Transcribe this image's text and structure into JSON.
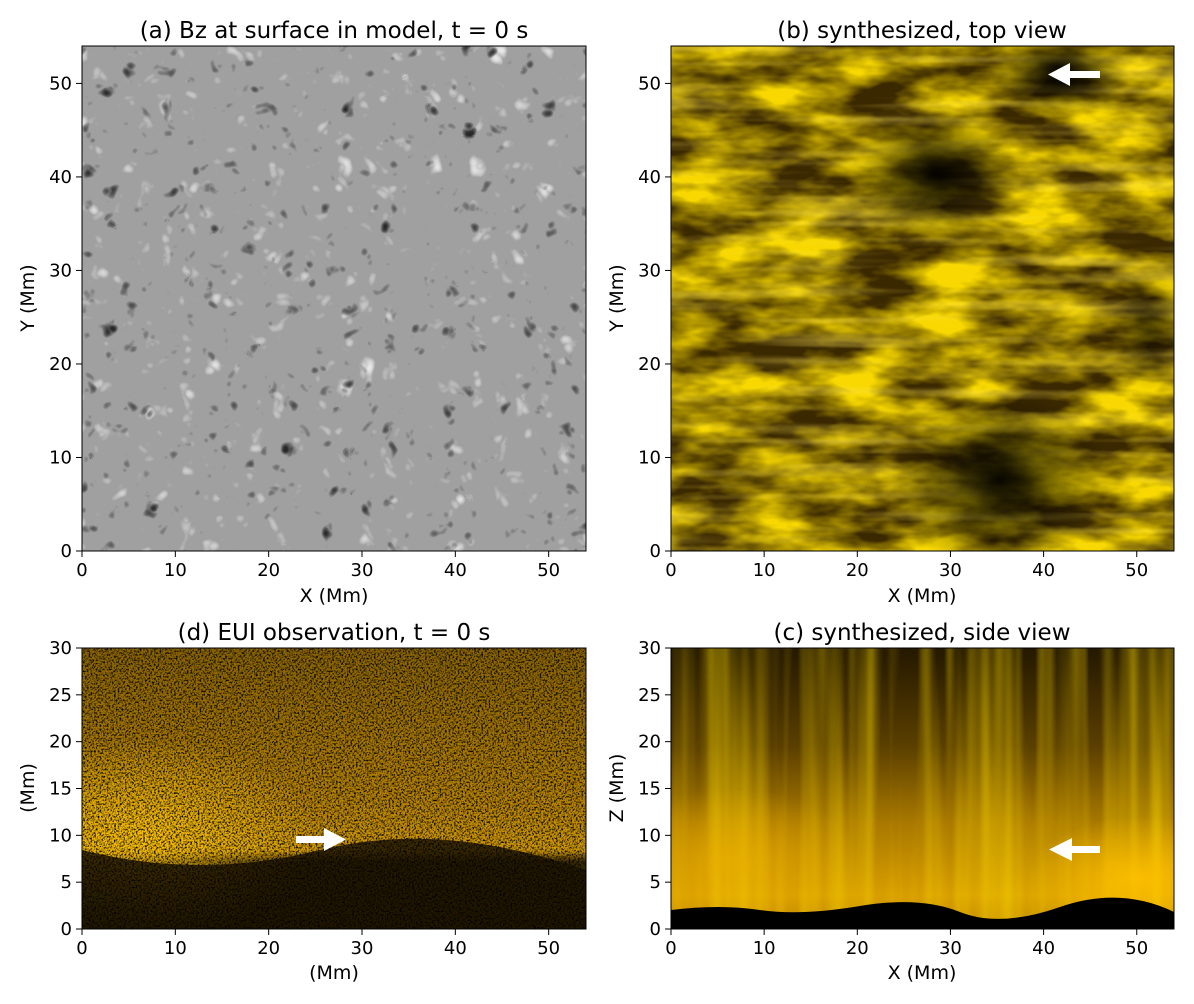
{
  "panels": [
    {
      "id": "a",
      "title": "(a) Bz at surface in model, t = 0 s",
      "xlabel": "X (Mm)",
      "ylabel": "Y (Mm)",
      "xticks": [
        "0",
        "10",
        "20",
        "30",
        "40",
        "50"
      ],
      "yticks": [
        "0",
        "10",
        "20",
        "30",
        "40",
        "50"
      ],
      "image": "grayscale-magnetogram"
    },
    {
      "id": "b",
      "title": "(b) synthesized, top view",
      "xlabel": "X (Mm)",
      "ylabel": "Y (Mm)",
      "xticks": [
        "0",
        "10",
        "20",
        "30",
        "40",
        "50"
      ],
      "yticks": [
        "0",
        "10",
        "20",
        "30",
        "40",
        "50"
      ],
      "image": "gold-emission-top-view",
      "arrow": "pointing-left"
    },
    {
      "id": "d",
      "title": "(d) EUI observation, t = 0 s",
      "xlabel": "(Mm)",
      "ylabel": "(Mm)",
      "xticks": [
        "0",
        "10",
        "20",
        "30",
        "40",
        "50"
      ],
      "yticks": [
        "0",
        "5",
        "10",
        "15",
        "20",
        "25",
        "30"
      ],
      "image": "gold-noisy-observation",
      "arrow": "pointing-right"
    },
    {
      "id": "c",
      "title": "(c) synthesized, side view",
      "xlabel": "X (Mm)",
      "ylabel": "Z (Mm)",
      "xticks": [
        "0",
        "10",
        "20",
        "30",
        "40",
        "50"
      ],
      "yticks": [
        "0",
        "5",
        "10",
        "15",
        "20",
        "25",
        "30"
      ],
      "image": "gold-emission-side-view",
      "arrow": "pointing-left"
    }
  ],
  "colors": {
    "gold": "#f0b000",
    "gray": "#808080"
  }
}
